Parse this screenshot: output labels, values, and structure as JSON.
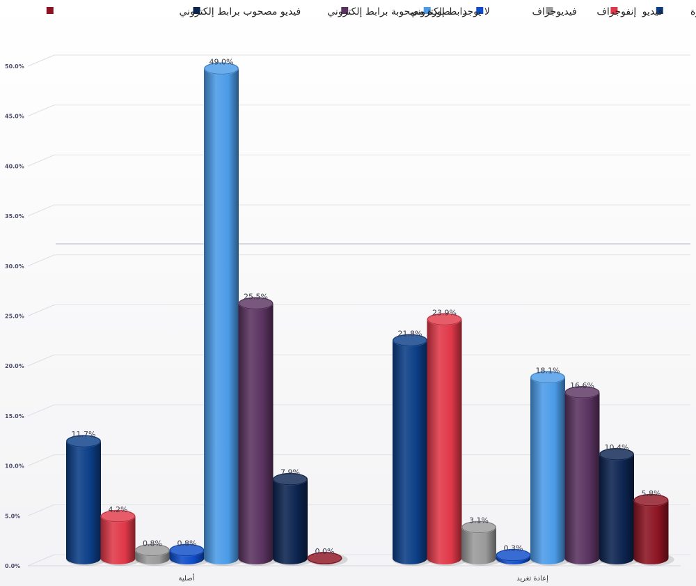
{
  "chart_data": {
    "type": "bar",
    "categories": [
      "أصلية",
      "إعادة تغريد"
    ],
    "series": [
      {
        "name": "صورة",
        "color": "#0b3e86",
        "values": [
          11.7,
          21.8
        ]
      },
      {
        "name": "فيديو",
        "color": "#e03848",
        "values": [
          4.2,
          23.9
        ]
      },
      {
        "name": "إنفوجراف",
        "color": "#9a9a9a",
        "values": [
          0.8,
          3.1
        ]
      },
      {
        "name": "فيديوجراف",
        "color": "#0e4cc8",
        "values": [
          0.8,
          0.3
        ]
      },
      {
        "name": "لا يوجد",
        "color": "#4b9be8",
        "values": [
          49.0,
          18.1
        ]
      },
      {
        "name": "رابط إلكتروني",
        "color": "#5a3360",
        "values": [
          25.5,
          16.6
        ]
      },
      {
        "name": "صورة مصحوبة برابط إلكتروني",
        "color": "#0c2450",
        "values": [
          7.9,
          10.4
        ]
      },
      {
        "name": "فيديو مصحوب برابط إلكتروني",
        "color": "#8c1422",
        "values": [
          0.0,
          5.8
        ]
      }
    ],
    "data_labels": [
      [
        "11.7%",
        "21.8%"
      ],
      [
        "4.2%",
        "23.9%"
      ],
      [
        "0.8%",
        "3.1%"
      ],
      [
        "0.8%",
        "0.3%"
      ],
      [
        "49.0%",
        "18.1%"
      ],
      [
        "25.5%",
        "16.6%"
      ],
      [
        "7.9%",
        "10.4%"
      ],
      [
        "0.0%",
        "5.8%"
      ]
    ],
    "yticks": [
      "0.0%",
      "5.0%",
      "10.0%",
      "15.0%",
      "20.0%",
      "25.0%",
      "30.0%",
      "35.0%",
      "40.0%",
      "45.0%",
      "50.0%"
    ],
    "ylim": [
      0,
      50
    ],
    "grid": true,
    "legend": "top-right",
    "style": "3d-cylinder"
  }
}
